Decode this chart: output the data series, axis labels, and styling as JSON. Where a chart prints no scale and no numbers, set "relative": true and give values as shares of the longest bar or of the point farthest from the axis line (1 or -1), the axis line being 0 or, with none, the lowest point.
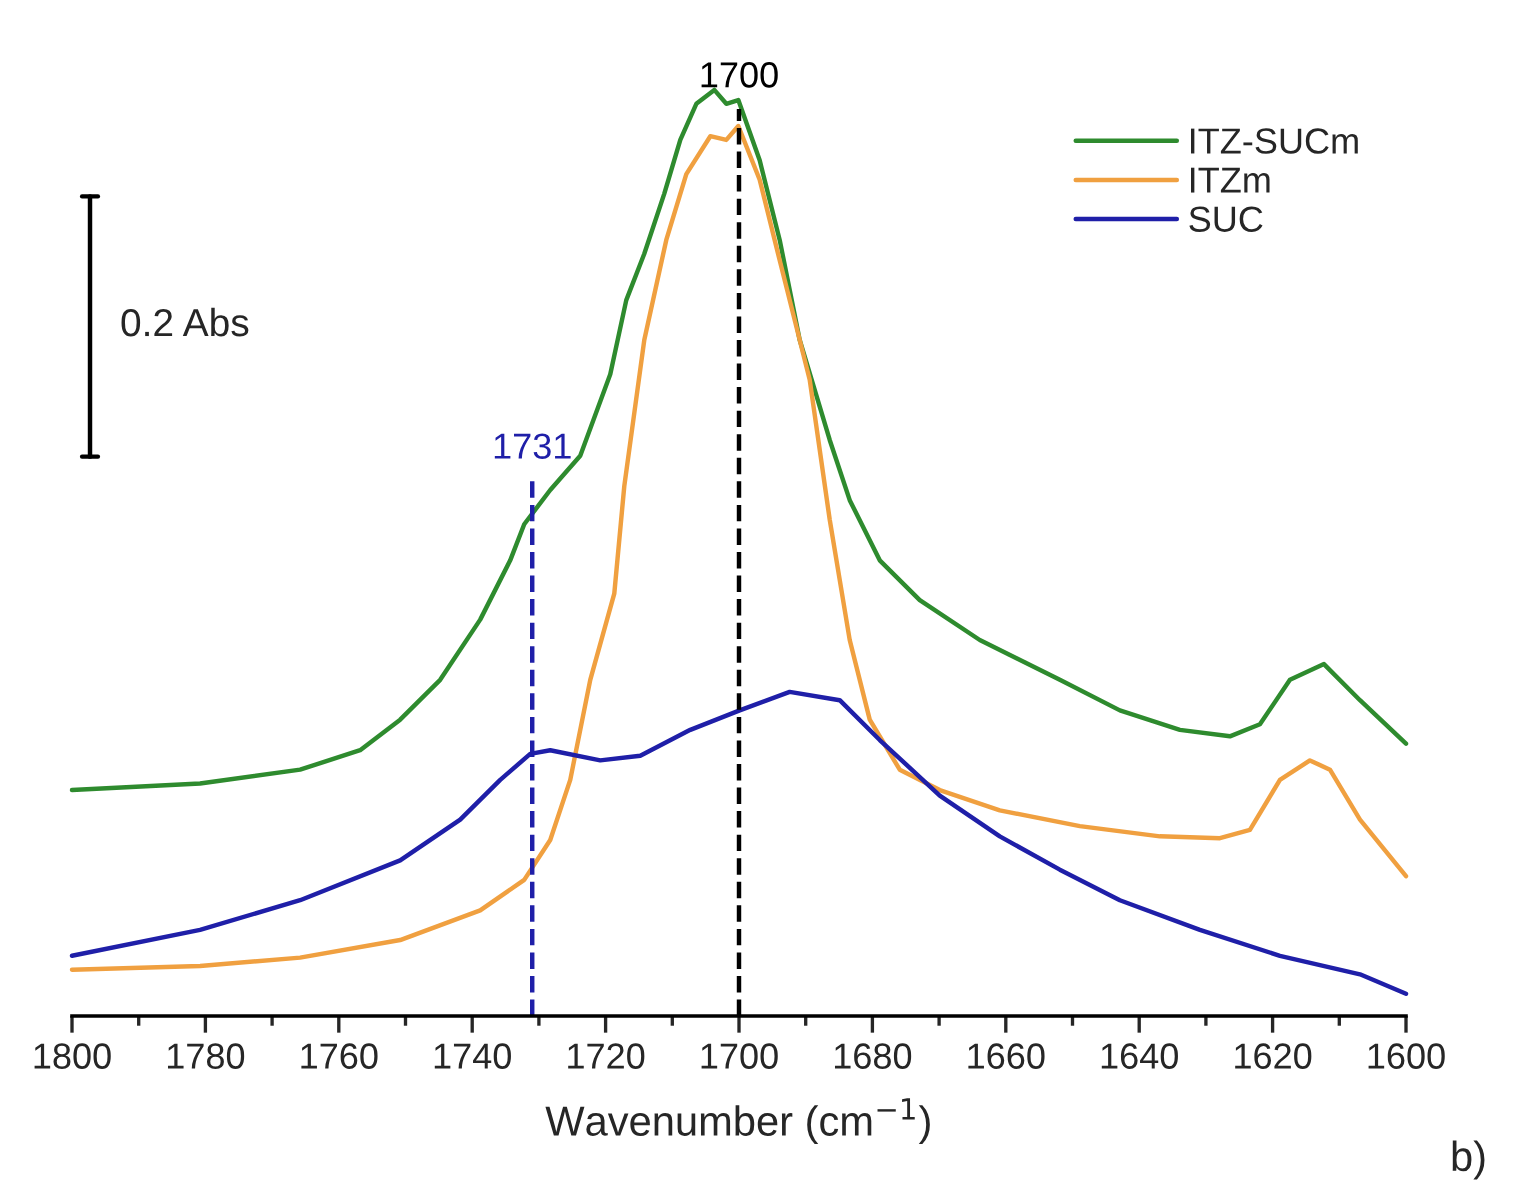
{
  "chart_data": {
    "type": "line",
    "relative": true,
    "xlabel": "Wavenumber (cm$^{−1}$)",
    "xlim": [
      1800,
      1600
    ],
    "xticks": [
      1800,
      1780,
      1760,
      1740,
      1720,
      1700,
      1680,
      1660,
      1640,
      1620,
      1600
    ],
    "legend": "top right",
    "grid": false,
    "series": [
      {
        "name": "ITZ-SUCm",
        "color": "#2e8b2e",
        "x": [
          1800,
          1780.8,
          1765.8,
          1756.8,
          1750.8,
          1744.8,
          1738.8,
          1734.3,
          1732.2,
          1728.3,
          1723.8,
          1719.3,
          1716.9,
          1714.2,
          1711.2,
          1708.8,
          1706.4,
          1703.7,
          1701.9,
          1700.1,
          1696.9,
          1693.9,
          1690.9,
          1686.4,
          1683.4,
          1678.9,
          1672.9,
          1663.9,
          1651.9,
          1642.9,
          1633.9,
          1626.4,
          1621.9,
          1617.4,
          1612.3,
          1606.9,
          1600
        ],
        "values": [
          0.244,
          0.251,
          0.266,
          0.287,
          0.32,
          0.363,
          0.428,
          0.492,
          0.531,
          0.568,
          0.605,
          0.693,
          0.773,
          0.823,
          0.888,
          0.946,
          0.985,
          1.0,
          0.985,
          0.989,
          0.924,
          0.838,
          0.73,
          0.622,
          0.557,
          0.492,
          0.449,
          0.406,
          0.363,
          0.33,
          0.309,
          0.302,
          0.315,
          0.363,
          0.38,
          0.341,
          0.294
        ]
      },
      {
        "name": "ITZm",
        "color": "#f0a040",
        "x": [
          1800,
          1780.8,
          1765.8,
          1750.8,
          1738.8,
          1732.2,
          1728.3,
          1725.3,
          1722.3,
          1718.7,
          1717.2,
          1714.2,
          1710.9,
          1707.9,
          1704.3,
          1701.9,
          1700.1,
          1696.9,
          1693.9,
          1689.4,
          1686.4,
          1683.4,
          1680.4,
          1675.9,
          1669.9,
          1660.9,
          1648.9,
          1636.9,
          1627.9,
          1623.4,
          1618.9,
          1614.4,
          1611.4,
          1606.9,
          1600
        ],
        "values": [
          0.05,
          0.054,
          0.063,
          0.082,
          0.114,
          0.147,
          0.19,
          0.255,
          0.363,
          0.456,
          0.572,
          0.73,
          0.838,
          0.909,
          0.95,
          0.946,
          0.961,
          0.903,
          0.816,
          0.687,
          0.536,
          0.406,
          0.32,
          0.266,
          0.244,
          0.222,
          0.205,
          0.194,
          0.192,
          0.201,
          0.255,
          0.276,
          0.266,
          0.212,
          0.151
        ]
      },
      {
        "color": "#000000",
        "x": [
          1797.3,
          1797.3
        ],
        "values": [
          0.604,
          0.885
        ]
      },
      {
        "name": "SUC",
        "color": "#1f1fa8",
        "x": [
          1800,
          1780.8,
          1765.8,
          1750.8,
          1741.8,
          1735.8,
          1731.3,
          1728.3,
          1720.8,
          1714.8,
          1707.3,
          1699.9,
          1692.4,
          1684.9,
          1678.9,
          1669.9,
          1660.9,
          1651.9,
          1642.9,
          1630.9,
          1618.9,
          1606.9,
          1600
        ],
        "values": [
          0.065,
          0.093,
          0.125,
          0.168,
          0.212,
          0.255,
          0.283,
          0.287,
          0.276,
          0.281,
          0.309,
          0.33,
          0.35,
          0.341,
          0.298,
          0.238,
          0.194,
          0.158,
          0.125,
          0.093,
          0.065,
          0.045,
          0.024
        ]
      }
    ],
    "ref_lines": [
      {
        "axis": "x",
        "value": 1731,
        "label": "1731",
        "color": "#1f1fa8",
        "line_style": "dashed"
      },
      {
        "axis": "x",
        "value": 1700,
        "label": "1700",
        "color": "#000000",
        "line_style": "dashed"
      }
    ],
    "annotations": [
      "0.2 Abs",
      "b)"
    ]
  }
}
